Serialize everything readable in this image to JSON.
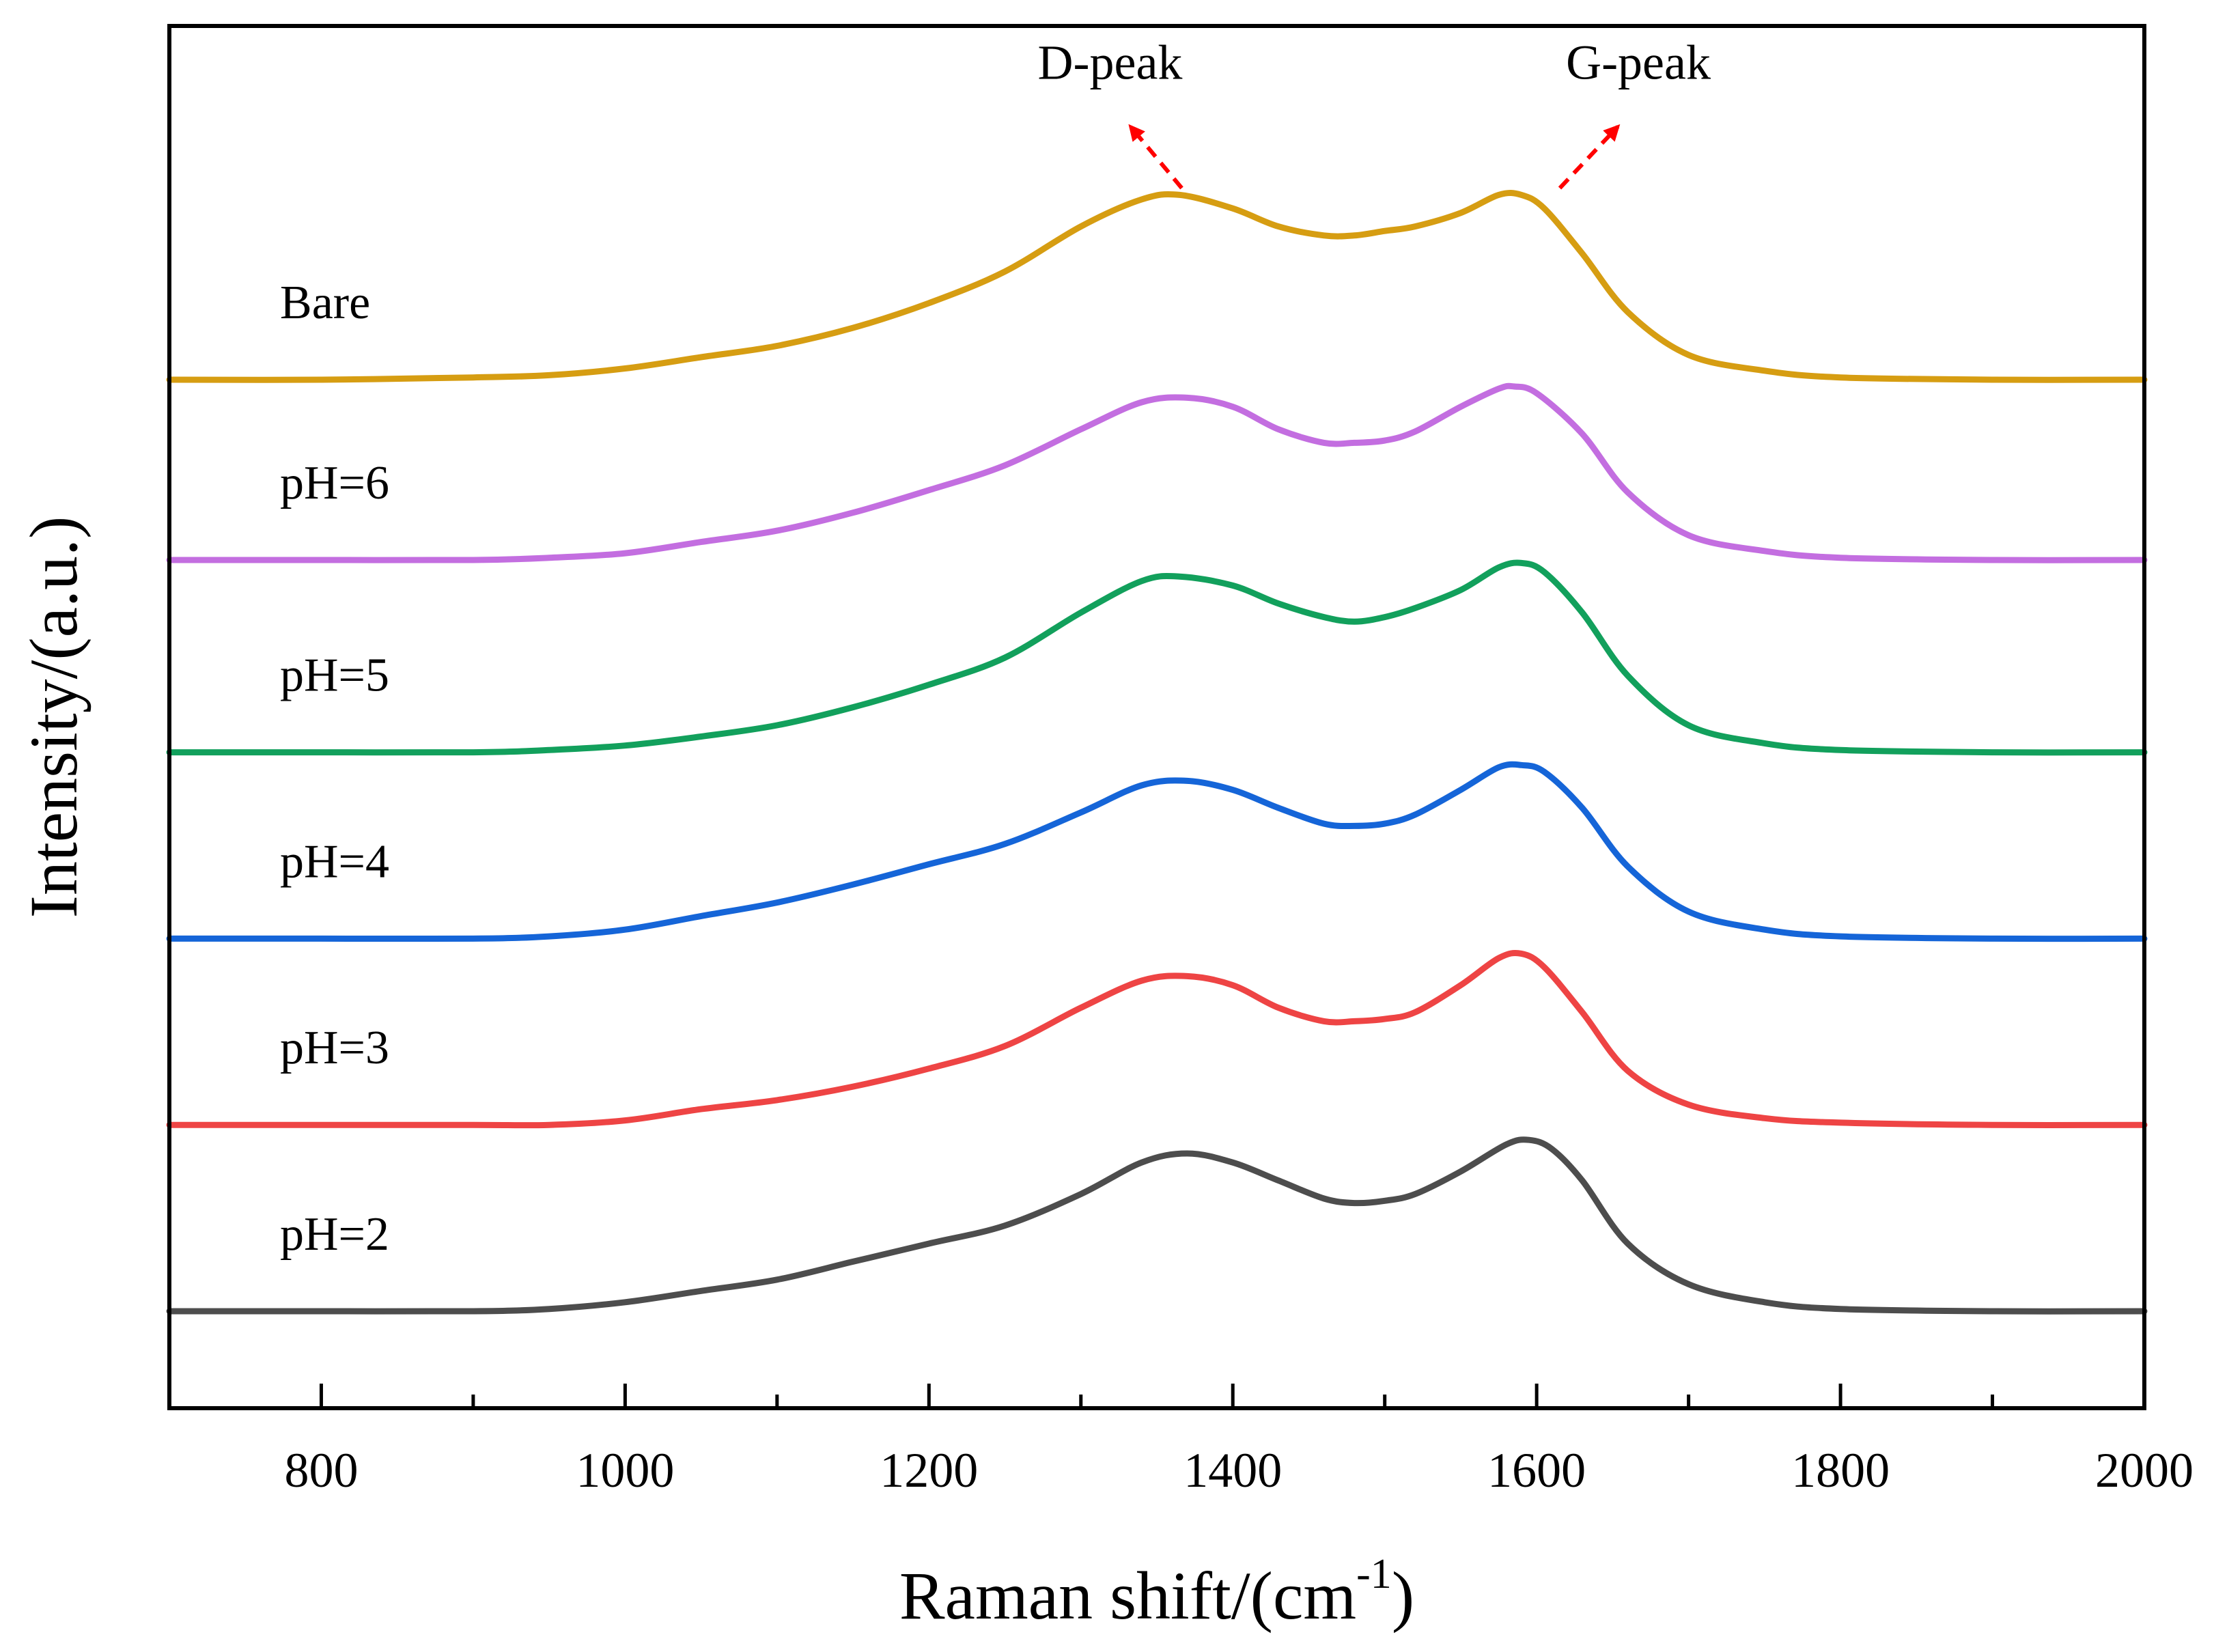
{
  "chart_data": {
    "type": "line",
    "title": "",
    "xlabel": "Raman shift/(cm",
    "xlabel_sup": "-1",
    "xlabel_close": ")",
    "ylabel": "Intensity/(a.u.)",
    "xlim": [
      700,
      2000
    ],
    "ylim": [
      0,
      7.8
    ],
    "x_ticks": [
      800,
      1000,
      1200,
      1400,
      1600,
      1800,
      2000
    ],
    "x_tick_labels": [
      "800",
      "1000",
      "1200",
      "1400",
      "1600",
      "1800",
      "2000"
    ],
    "x_minor_step": 100,
    "grid": false,
    "stacked_offset": true,
    "series": [
      {
        "name": "pH=2",
        "color": "#4d4d4d",
        "offset": 0.55,
        "x": [
          700,
          800,
          900,
          950,
          1000,
          1050,
          1100,
          1150,
          1200,
          1250,
          1300,
          1340,
          1370,
          1400,
          1430,
          1460,
          1480,
          1500,
          1520,
          1550,
          1580,
          1595,
          1610,
          1630,
          1660,
          1700,
          1750,
          1800,
          1900,
          2000
        ],
        "values": [
          0.0,
          0.0,
          0.0,
          0.01,
          0.04,
          0.09,
          0.14,
          0.22,
          0.3,
          0.38,
          0.52,
          0.66,
          0.7,
          0.66,
          0.58,
          0.5,
          0.48,
          0.49,
          0.52,
          0.62,
          0.74,
          0.76,
          0.72,
          0.58,
          0.3,
          0.12,
          0.04,
          0.01,
          0.0,
          0.0
        ]
      },
      {
        "name": "pH=3",
        "color": "#ee4444",
        "offset": 2.1,
        "x": [
          700,
          800,
          900,
          950,
          1000,
          1050,
          1100,
          1150,
          1200,
          1250,
          1300,
          1340,
          1370,
          1400,
          1430,
          1460,
          1480,
          1500,
          1520,
          1550,
          1575,
          1590,
          1605,
          1630,
          1660,
          1700,
          1750,
          1800,
          1900,
          2000
        ],
        "values": [
          0.0,
          0.0,
          0.0,
          0.0,
          0.02,
          0.07,
          0.11,
          0.17,
          0.25,
          0.35,
          0.52,
          0.64,
          0.66,
          0.62,
          0.52,
          0.46,
          0.46,
          0.47,
          0.5,
          0.62,
          0.74,
          0.76,
          0.7,
          0.5,
          0.24,
          0.09,
          0.03,
          0.01,
          0.0,
          0.0
        ]
      },
      {
        "name": "pH=4",
        "color": "#1565d8",
        "offset": 3.65,
        "x": [
          700,
          800,
          900,
          950,
          1000,
          1050,
          1100,
          1150,
          1200,
          1250,
          1300,
          1340,
          1370,
          1400,
          1430,
          1460,
          1480,
          1500,
          1520,
          1550,
          1575,
          1590,
          1605,
          1630,
          1660,
          1700,
          1750,
          1800,
          1900,
          2000
        ],
        "values": [
          0.0,
          0.0,
          0.0,
          0.01,
          0.04,
          0.1,
          0.16,
          0.24,
          0.33,
          0.42,
          0.56,
          0.68,
          0.7,
          0.66,
          0.58,
          0.51,
          0.5,
          0.51,
          0.55,
          0.66,
          0.76,
          0.77,
          0.74,
          0.58,
          0.32,
          0.12,
          0.04,
          0.01,
          0.0,
          0.0
        ]
      },
      {
        "name": "pH=5",
        "color": "#12a05c",
        "offset": 5.2,
        "x": [
          700,
          800,
          900,
          950,
          1000,
          1050,
          1100,
          1150,
          1200,
          1250,
          1300,
          1340,
          1365,
          1400,
          1430,
          1460,
          1480,
          1500,
          1520,
          1550,
          1575,
          1590,
          1605,
          1630,
          1660,
          1700,
          1750,
          1800,
          1900,
          2000
        ],
        "values": [
          0.0,
          0.0,
          0.0,
          0.01,
          0.03,
          0.07,
          0.12,
          0.2,
          0.3,
          0.42,
          0.62,
          0.76,
          0.78,
          0.74,
          0.66,
          0.6,
          0.58,
          0.6,
          0.64,
          0.72,
          0.82,
          0.84,
          0.8,
          0.62,
          0.34,
          0.12,
          0.04,
          0.01,
          0.0,
          0.0
        ]
      },
      {
        "name": "pH=6",
        "color": "#c36ee0",
        "offset": 6.8,
        "x": [
          700,
          800,
          900,
          950,
          1000,
          1050,
          1100,
          1150,
          1200,
          1250,
          1300,
          1340,
          1370,
          1400,
          1430,
          1460,
          1480,
          1500,
          1520,
          1550,
          1575,
          1585,
          1600,
          1630,
          1660,
          1700,
          1750,
          1800,
          1900,
          2000
        ],
        "values": [
          0.0,
          0.0,
          0.0,
          0.01,
          0.03,
          0.08,
          0.13,
          0.21,
          0.31,
          0.42,
          0.58,
          0.7,
          0.72,
          0.68,
          0.58,
          0.52,
          0.52,
          0.53,
          0.57,
          0.68,
          0.76,
          0.77,
          0.74,
          0.56,
          0.3,
          0.11,
          0.04,
          0.01,
          0.0,
          0.0
        ]
      },
      {
        "name": "Bare",
        "color": "#d69d12",
        "offset": 8.3,
        "x": [
          700,
          800,
          900,
          950,
          1000,
          1050,
          1100,
          1150,
          1200,
          1250,
          1300,
          1340,
          1365,
          1400,
          1430,
          1460,
          1480,
          1500,
          1520,
          1550,
          1575,
          1590,
          1605,
          1630,
          1660,
          1700,
          1750,
          1800,
          1900,
          2000
        ],
        "values": [
          0.0,
          0.0,
          0.01,
          0.02,
          0.05,
          0.1,
          0.15,
          0.23,
          0.34,
          0.48,
          0.68,
          0.8,
          0.82,
          0.76,
          0.68,
          0.64,
          0.64,
          0.66,
          0.68,
          0.74,
          0.82,
          0.82,
          0.76,
          0.56,
          0.3,
          0.11,
          0.04,
          0.01,
          0.0,
          0.0
        ]
      }
    ],
    "annotations": [
      {
        "text": "D-peak",
        "x": 1340,
        "color": "#ff0000"
      },
      {
        "text": "G-peak",
        "x": 1640,
        "color": "#ff0000"
      }
    ]
  }
}
